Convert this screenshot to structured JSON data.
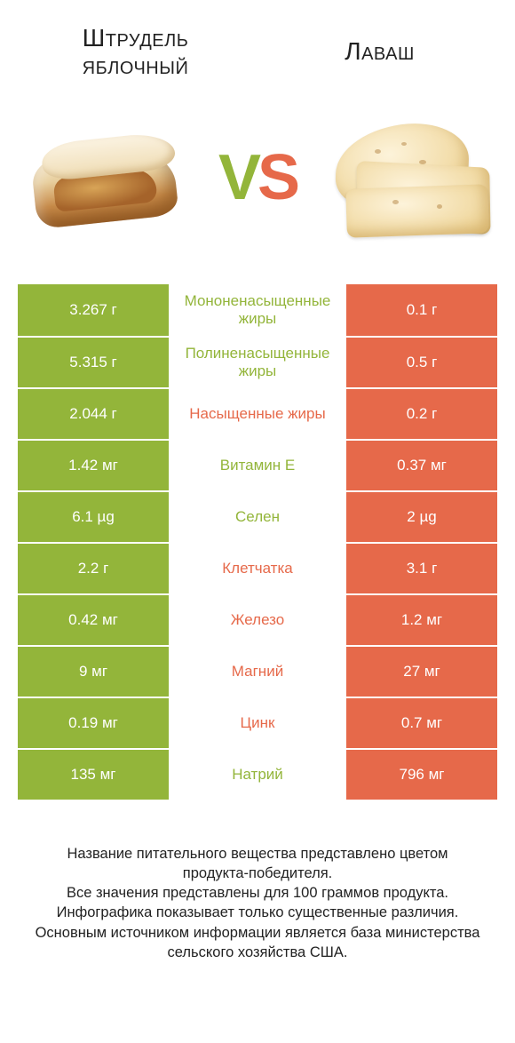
{
  "colors": {
    "green": "#93b53a",
    "orange": "#e6694a",
    "white": "#ffffff",
    "text": "#222222"
  },
  "header": {
    "left_title": "Штрудель яблочный",
    "right_title": "Лаваш",
    "vs_v": "V",
    "vs_s": "S"
  },
  "rows": [
    {
      "left": "3.267 г",
      "label": "Мононенасыщенные жиры",
      "right": "0.1 г",
      "winner": "left"
    },
    {
      "left": "5.315 г",
      "label": "Полиненасыщенные жиры",
      "right": "0.5 г",
      "winner": "left"
    },
    {
      "left": "2.044 г",
      "label": "Насыщенные жиры",
      "right": "0.2 г",
      "winner": "right"
    },
    {
      "left": "1.42 мг",
      "label": "Витамин E",
      "right": "0.37 мг",
      "winner": "left"
    },
    {
      "left": "6.1 µg",
      "label": "Селен",
      "right": "2 µg",
      "winner": "left"
    },
    {
      "left": "2.2 г",
      "label": "Клетчатка",
      "right": "3.1 г",
      "winner": "right"
    },
    {
      "left": "0.42 мг",
      "label": "Железо",
      "right": "1.2 мг",
      "winner": "right"
    },
    {
      "left": "9 мг",
      "label": "Магний",
      "right": "27 мг",
      "winner": "right"
    },
    {
      "left": "0.19 мг",
      "label": "Цинк",
      "right": "0.7 мг",
      "winner": "right"
    },
    {
      "left": "135 мг",
      "label": "Натрий",
      "right": "796 мг",
      "winner": "left"
    }
  ],
  "footer": {
    "line1": "Название питательного вещества представлено цветом продукта-победителя.",
    "line2": "Все значения представлены для 100 граммов продукта.",
    "line3": "Инфографика показывает только существенные различия.",
    "line4": "Основным источником информации является база министерства сельского хозяйства США."
  }
}
